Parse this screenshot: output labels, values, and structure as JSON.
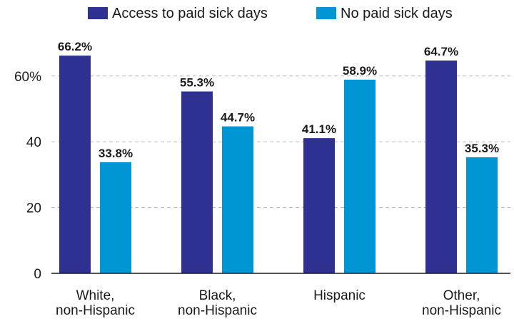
{
  "chart_data": {
    "type": "bar",
    "categories": [
      [
        "White,",
        "non-Hispanic"
      ],
      [
        "Black,",
        "non-Hispanic"
      ],
      [
        "Hispanic"
      ],
      [
        "Other,",
        "non-Hispanic"
      ]
    ],
    "series": [
      {
        "name": "Access to paid sick days",
        "color": "#2e3192",
        "values": [
          66.2,
          55.3,
          41.1,
          64.7
        ],
        "labels": [
          "66.2%",
          "55.3%",
          "41.1%",
          "64.7%"
        ]
      },
      {
        "name": "No paid sick days",
        "color": "#0096d6",
        "values": [
          33.8,
          44.7,
          58.9,
          35.3
        ],
        "labels": [
          "33.8%",
          "44.7%",
          "58.9%",
          "35.3%"
        ]
      }
    ],
    "yticks": [
      {
        "value": 0,
        "label": "0"
      },
      {
        "value": 20,
        "label": "20"
      },
      {
        "value": 40,
        "label": "40"
      },
      {
        "value": 60,
        "label": "60%"
      }
    ],
    "ylim": [
      0,
      70
    ],
    "grid": true,
    "legend_position": "top"
  }
}
